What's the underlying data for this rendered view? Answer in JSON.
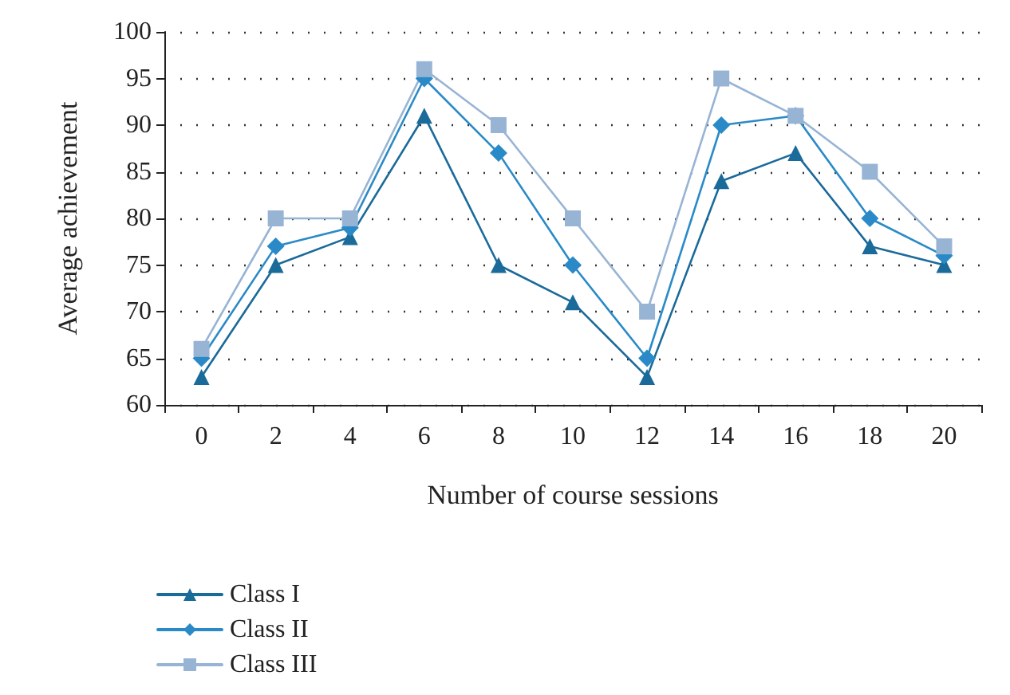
{
  "chart_data": {
    "type": "line",
    "xlabel": "Number of course sessions",
    "ylabel": "Average achievement",
    "categories": [
      "0",
      "2",
      "4",
      "6",
      "8",
      "10",
      "12",
      "14",
      "16",
      "18",
      "20"
    ],
    "series": [
      {
        "name": "Class I",
        "color": "#1a6a9a",
        "marker": "triangle",
        "values": [
          63,
          75,
          78,
          91,
          75,
          71,
          63,
          84,
          87,
          77,
          75
        ]
      },
      {
        "name": "Class II",
        "color": "#2a8ac8",
        "marker": "diamond",
        "values": [
          65,
          77,
          79,
          95,
          87,
          75,
          65,
          90,
          91,
          80,
          76
        ]
      },
      {
        "name": "Class III",
        "color": "#98b4d4",
        "marker": "square",
        "values": [
          66,
          80,
          80,
          96,
          90,
          80,
          70,
          95,
          91,
          85,
          77
        ]
      }
    ],
    "ylim": [
      60,
      100
    ],
    "yticks": [
      60,
      65,
      70,
      75,
      80,
      85,
      90,
      95,
      100
    ],
    "grid": "y",
    "legend": "bottom left",
    "line_style": "solid"
  }
}
